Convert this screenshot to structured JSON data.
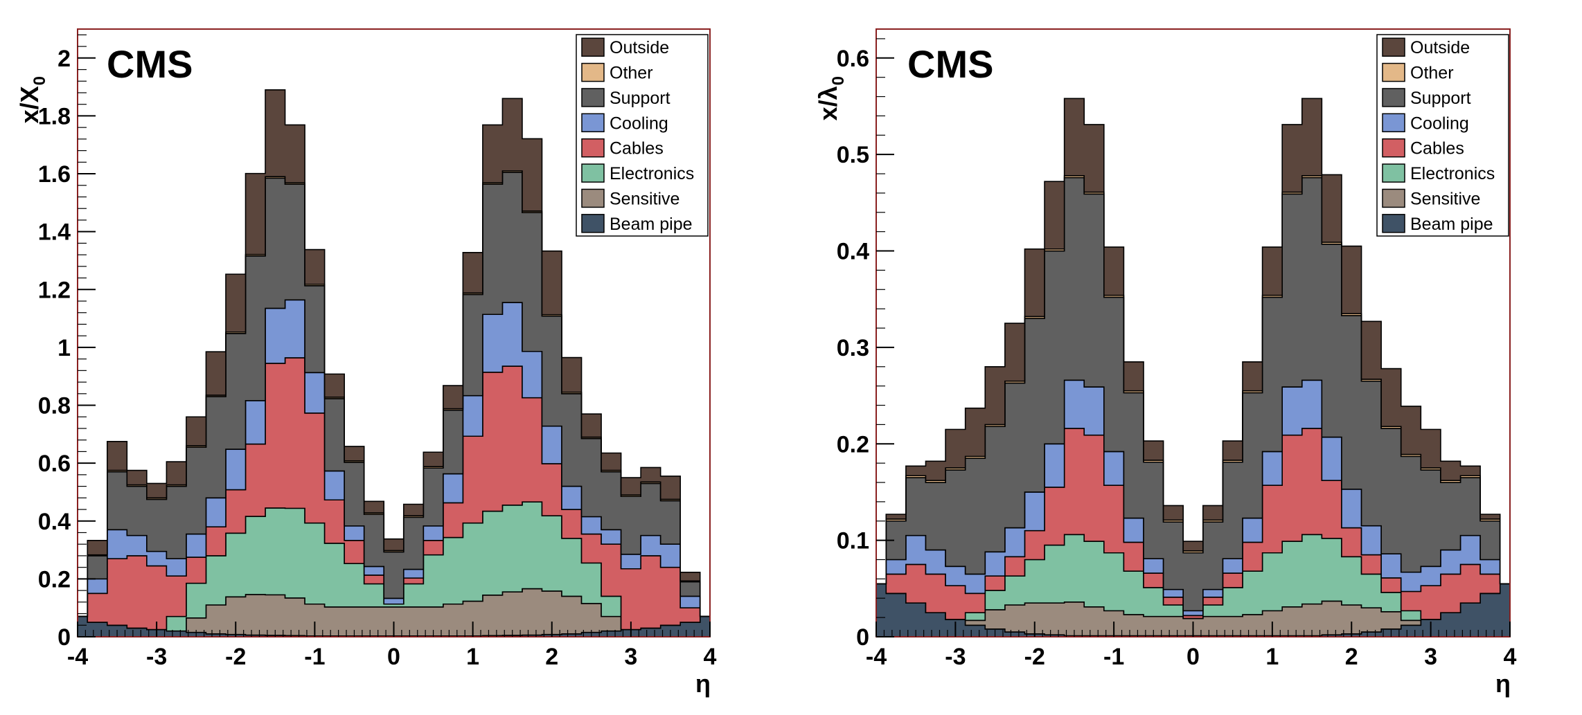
{
  "chart_data": [
    {
      "type": "area",
      "stacked": true,
      "histogram": true,
      "label": "CMS",
      "ylabel": "x/X",
      "ylabel_sub": "0",
      "xlabel": "η",
      "xlim": [
        -4,
        4
      ],
      "ylim": [
        0,
        2.1
      ],
      "xticks": [
        "-4",
        "-3",
        "-2",
        "-1",
        "0",
        "1",
        "2",
        "3",
        "4"
      ],
      "yticks": [
        "0",
        "0.2",
        "0.4",
        "0.6",
        "0.8",
        "1",
        "1.2",
        "1.4",
        "1.6",
        "1.8",
        "2"
      ],
      "ytick_values": [
        0,
        0.2,
        0.4,
        0.6,
        0.8,
        1,
        1.2,
        1.4,
        1.6,
        1.8,
        2
      ],
      "legend_position": "top-right",
      "x": [
        -4.0,
        -3.75,
        -3.5,
        -3.25,
        -3.0,
        -2.75,
        -2.5,
        -2.25,
        -2.0,
        -1.75,
        -1.5,
        -1.25,
        -1.0,
        -0.75,
        -0.5,
        -0.25,
        0.0,
        0.25,
        0.5,
        0.75,
        1.0,
        1.25,
        1.5,
        1.75,
        2.0,
        2.25,
        2.5,
        2.75,
        3.0,
        3.25,
        3.5,
        3.75,
        4.0
      ],
      "series": [
        {
          "name": "Beam pipe",
          "color": "#3f5266",
          "values": [
            0.07,
            0.05,
            0.04,
            0.03,
            0.025,
            0.02,
            0.015,
            0.01,
            0.008,
            0.006,
            0.005,
            0.004,
            0.003,
            0.003,
            0.003,
            0.003,
            0.003,
            0.003,
            0.003,
            0.003,
            0.003,
            0.004,
            0.005,
            0.006,
            0.008,
            0.01,
            0.015,
            0.02,
            0.025,
            0.03,
            0.04,
            0.05,
            0.07
          ]
        },
        {
          "name": "Sensitive",
          "color": "#9b8b7e",
          "values": [
            0.0,
            0.0,
            0.0,
            0.0,
            0.0,
            0.0,
            0.05,
            0.1,
            0.13,
            0.14,
            0.14,
            0.13,
            0.11,
            0.1,
            0.1,
            0.1,
            0.1,
            0.1,
            0.1,
            0.11,
            0.12,
            0.14,
            0.15,
            0.16,
            0.15,
            0.13,
            0.1,
            0.05,
            0.0,
            0.0,
            0.0,
            0.0,
            0.0
          ]
        },
        {
          "name": "Electronics",
          "color": "#7fc1a2",
          "values": [
            0.0,
            0.0,
            0.0,
            0.0,
            0.0,
            0.05,
            0.12,
            0.17,
            0.22,
            0.27,
            0.3,
            0.31,
            0.28,
            0.22,
            0.15,
            0.08,
            0.01,
            0.08,
            0.18,
            0.23,
            0.27,
            0.29,
            0.3,
            0.3,
            0.26,
            0.2,
            0.14,
            0.07,
            0.0,
            0.0,
            0.0,
            0.0,
            0.0
          ]
        },
        {
          "name": "Cables",
          "color": "#d25f63",
          "values": [
            0.0,
            0.1,
            0.23,
            0.25,
            0.22,
            0.14,
            0.09,
            0.1,
            0.15,
            0.25,
            0.5,
            0.52,
            0.38,
            0.15,
            0.08,
            0.03,
            0.0,
            0.02,
            0.05,
            0.12,
            0.3,
            0.48,
            0.48,
            0.36,
            0.18,
            0.1,
            0.1,
            0.18,
            0.21,
            0.25,
            0.2,
            0.05,
            0.0
          ]
        },
        {
          "name": "Cooling",
          "color": "#7a96d4",
          "values": [
            0.0,
            0.05,
            0.1,
            0.07,
            0.05,
            0.06,
            0.08,
            0.1,
            0.14,
            0.15,
            0.19,
            0.2,
            0.14,
            0.1,
            0.05,
            0.03,
            0.02,
            0.03,
            0.05,
            0.1,
            0.14,
            0.2,
            0.22,
            0.16,
            0.13,
            0.08,
            0.06,
            0.05,
            0.05,
            0.07,
            0.08,
            0.04,
            0.0
          ]
        },
        {
          "name": "Support",
          "color": "#606060",
          "values": [
            0.0,
            0.08,
            0.2,
            0.17,
            0.18,
            0.25,
            0.3,
            0.35,
            0.4,
            0.5,
            0.45,
            0.4,
            0.3,
            0.25,
            0.22,
            0.18,
            0.16,
            0.18,
            0.2,
            0.22,
            0.35,
            0.45,
            0.45,
            0.48,
            0.38,
            0.32,
            0.27,
            0.2,
            0.2,
            0.18,
            0.15,
            0.05,
            0.0
          ]
        },
        {
          "name": "Other",
          "color": "#e3b888",
          "values": [
            0.0,
            0.003,
            0.005,
            0.005,
            0.005,
            0.005,
            0.005,
            0.005,
            0.005,
            0.005,
            0.005,
            0.005,
            0.005,
            0.005,
            0.005,
            0.005,
            0.005,
            0.005,
            0.005,
            0.005,
            0.005,
            0.005,
            0.005,
            0.005,
            0.005,
            0.005,
            0.005,
            0.005,
            0.005,
            0.005,
            0.005,
            0.003,
            0.0
          ]
        },
        {
          "name": "Outside",
          "color": "#5b463d",
          "values": [
            0.0,
            0.05,
            0.1,
            0.05,
            0.05,
            0.08,
            0.1,
            0.15,
            0.2,
            0.28,
            0.3,
            0.2,
            0.12,
            0.08,
            0.05,
            0.04,
            0.04,
            0.04,
            0.05,
            0.08,
            0.14,
            0.2,
            0.25,
            0.25,
            0.22,
            0.12,
            0.08,
            0.06,
            0.06,
            0.05,
            0.08,
            0.03,
            0.0
          ]
        }
      ]
    },
    {
      "type": "area",
      "stacked": true,
      "histogram": true,
      "label": "CMS",
      "ylabel": "x/λ",
      "ylabel_sub": "0",
      "xlabel": "η",
      "xlim": [
        -4,
        4
      ],
      "ylim": [
        0,
        0.63
      ],
      "xticks": [
        "-4",
        "-3",
        "-2",
        "-1",
        "0",
        "1",
        "2",
        "3",
        "4"
      ],
      "yticks": [
        "0",
        "0.1",
        "0.2",
        "0.3",
        "0.4",
        "0.5",
        "0.6"
      ],
      "ytick_values": [
        0,
        0.1,
        0.2,
        0.3,
        0.4,
        0.5,
        0.6
      ],
      "legend_position": "top-right",
      "x": [
        -4.0,
        -3.75,
        -3.5,
        -3.25,
        -3.0,
        -2.75,
        -2.5,
        -2.25,
        -2.0,
        -1.75,
        -1.5,
        -1.25,
        -1.0,
        -0.75,
        -0.5,
        -0.25,
        0.0,
        0.25,
        0.5,
        0.75,
        1.0,
        1.25,
        1.5,
        1.75,
        2.0,
        2.25,
        2.5,
        2.75,
        3.0,
        3.25,
        3.5,
        3.75,
        4.0
      ],
      "series": [
        {
          "name": "Beam pipe",
          "color": "#3f5266",
          "values": [
            0.055,
            0.045,
            0.035,
            0.025,
            0.018,
            0.012,
            0.008,
            0.005,
            0.003,
            0.002,
            0.001,
            0.001,
            0.001,
            0.001,
            0.001,
            0.001,
            0.001,
            0.001,
            0.001,
            0.001,
            0.001,
            0.001,
            0.001,
            0.002,
            0.003,
            0.005,
            0.008,
            0.012,
            0.018,
            0.025,
            0.035,
            0.045,
            0.055
          ]
        },
        {
          "name": "Sensitive",
          "color": "#9b8b7e",
          "values": [
            0.0,
            0.0,
            0.0,
            0.0,
            0.0,
            0.005,
            0.02,
            0.028,
            0.032,
            0.033,
            0.035,
            0.03,
            0.026,
            0.022,
            0.02,
            0.02,
            0.018,
            0.02,
            0.02,
            0.022,
            0.026,
            0.03,
            0.033,
            0.035,
            0.03,
            0.025,
            0.018,
            0.005,
            0.0,
            0.0,
            0.0,
            0.0,
            0.0
          ]
        },
        {
          "name": "Electronics",
          "color": "#7fc1a2",
          "values": [
            0.0,
            0.0,
            0.0,
            0.0,
            0.0,
            0.008,
            0.02,
            0.03,
            0.045,
            0.06,
            0.07,
            0.068,
            0.06,
            0.045,
            0.03,
            0.012,
            0.0,
            0.012,
            0.03,
            0.045,
            0.06,
            0.068,
            0.072,
            0.065,
            0.05,
            0.035,
            0.02,
            0.01,
            0.0,
            0.0,
            0.0,
            0.0,
            0.0
          ]
        },
        {
          "name": "Cables",
          "color": "#d25f63",
          "values": [
            0.0,
            0.02,
            0.04,
            0.04,
            0.035,
            0.02,
            0.015,
            0.02,
            0.03,
            0.06,
            0.11,
            0.11,
            0.07,
            0.03,
            0.015,
            0.008,
            0.003,
            0.008,
            0.015,
            0.03,
            0.07,
            0.11,
            0.11,
            0.06,
            0.03,
            0.02,
            0.015,
            0.02,
            0.035,
            0.04,
            0.04,
            0.02,
            0.0
          ]
        },
        {
          "name": "Cooling",
          "color": "#7a96d4",
          "values": [
            0.0,
            0.015,
            0.03,
            0.025,
            0.02,
            0.02,
            0.025,
            0.03,
            0.04,
            0.045,
            0.05,
            0.05,
            0.035,
            0.025,
            0.015,
            0.008,
            0.005,
            0.008,
            0.015,
            0.025,
            0.035,
            0.05,
            0.05,
            0.045,
            0.04,
            0.03,
            0.025,
            0.02,
            0.02,
            0.025,
            0.03,
            0.015,
            0.0
          ]
        },
        {
          "name": "Support",
          "color": "#606060",
          "values": [
            0.0,
            0.04,
            0.06,
            0.07,
            0.1,
            0.12,
            0.13,
            0.15,
            0.18,
            0.2,
            0.21,
            0.2,
            0.16,
            0.13,
            0.1,
            0.07,
            0.06,
            0.07,
            0.1,
            0.13,
            0.16,
            0.2,
            0.21,
            0.2,
            0.18,
            0.15,
            0.13,
            0.12,
            0.1,
            0.07,
            0.06,
            0.04,
            0.0
          ]
        },
        {
          "name": "Other",
          "color": "#e3b888",
          "values": [
            0.0,
            0.002,
            0.002,
            0.002,
            0.002,
            0.002,
            0.002,
            0.002,
            0.002,
            0.002,
            0.002,
            0.002,
            0.002,
            0.002,
            0.002,
            0.002,
            0.002,
            0.002,
            0.002,
            0.002,
            0.002,
            0.002,
            0.002,
            0.002,
            0.002,
            0.002,
            0.002,
            0.002,
            0.002,
            0.002,
            0.002,
            0.002,
            0.0
          ]
        },
        {
          "name": "Outside",
          "color": "#5b463d",
          "values": [
            0.0,
            0.005,
            0.01,
            0.02,
            0.04,
            0.05,
            0.06,
            0.06,
            0.07,
            0.07,
            0.08,
            0.07,
            0.05,
            0.03,
            0.02,
            0.015,
            0.01,
            0.015,
            0.02,
            0.03,
            0.05,
            0.07,
            0.08,
            0.07,
            0.07,
            0.06,
            0.06,
            0.05,
            0.04,
            0.02,
            0.01,
            0.005,
            0.0
          ]
        }
      ]
    }
  ]
}
